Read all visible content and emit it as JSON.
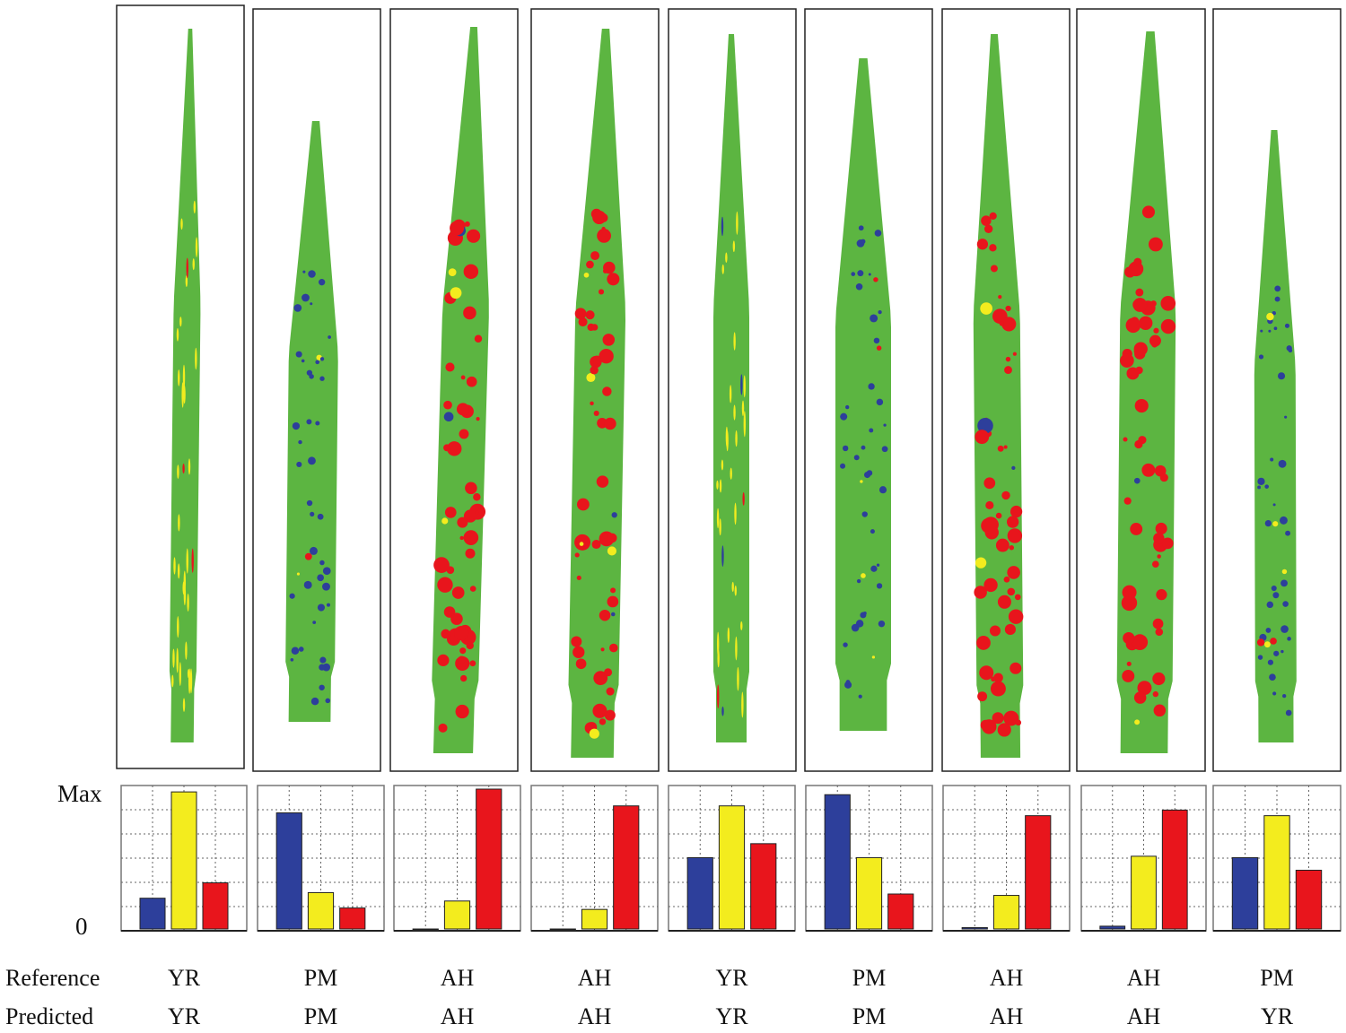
{
  "colors": {
    "healthy": "#5cb541",
    "YR": "#f3ec1e",
    "PM": "#2d3f9b",
    "AH": "#e8151c"
  },
  "axis": {
    "max_label": "Max",
    "zero_label": "0"
  },
  "row_labels": {
    "reference": "Reference",
    "predicted": "Predicted"
  },
  "chart_data": {
    "type": "bar",
    "categories": [
      "PM",
      "YR",
      "AH"
    ],
    "ylim": [
      0,
      1
    ],
    "y_tick_labels": [
      "0",
      "Max"
    ],
    "grid": true,
    "panels": [
      {
        "reference": "YR",
        "predicted": "YR",
        "values": [
          0.22,
          0.98,
          0.33
        ]
      },
      {
        "reference": "PM",
        "predicted": "PM",
        "values": [
          0.83,
          0.26,
          0.15
        ]
      },
      {
        "reference": "AH",
        "predicted": "AH",
        "values": [
          0.0,
          0.2,
          1.0
        ]
      },
      {
        "reference": "AH",
        "predicted": "AH",
        "values": [
          0.0,
          0.14,
          0.88
        ]
      },
      {
        "reference": "YR",
        "predicted": "YR",
        "values": [
          0.51,
          0.88,
          0.61
        ]
      },
      {
        "reference": "PM",
        "predicted": "PM",
        "values": [
          0.96,
          0.51,
          0.25
        ]
      },
      {
        "reference": "AH",
        "predicted": "AH",
        "values": [
          0.01,
          0.24,
          0.81
        ]
      },
      {
        "reference": "AH",
        "predicted": "AH",
        "values": [
          0.02,
          0.52,
          0.85
        ]
      },
      {
        "reference": "PM",
        "predicted": "YR",
        "values": [
          0.51,
          0.81,
          0.42
        ]
      }
    ]
  }
}
